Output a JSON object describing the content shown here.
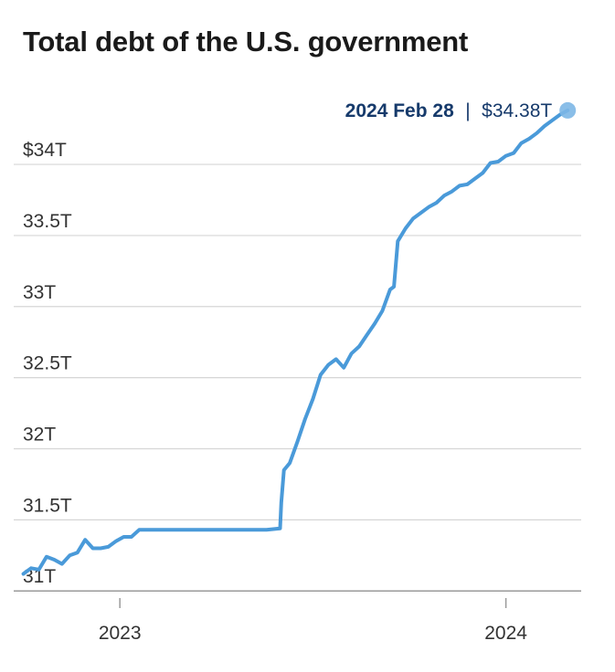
{
  "title": "Total debt of the U.S. government",
  "callout": {
    "date": "2024 Feb 28",
    "separator": "|",
    "value": "$34.38T"
  },
  "colors": {
    "line": "#4a9ad9",
    "grid": "#d6d6d6",
    "axis": "#9a9a9a",
    "callout": "#163a6b",
    "marker": "#7db7e6"
  },
  "chart_data": {
    "type": "line",
    "title": "Total debt of the U.S. government",
    "xlabel": "",
    "ylabel": "",
    "ylim": [
      30.95,
      34.45
    ],
    "y_ticks": [
      {
        "value": 31,
        "label": "31T"
      },
      {
        "value": 31.5,
        "label": "31.5T"
      },
      {
        "value": 32,
        "label": "32T"
      },
      {
        "value": 32.5,
        "label": "32.5T"
      },
      {
        "value": 33,
        "label": "33T"
      },
      {
        "value": 33.5,
        "label": "33.5T"
      },
      {
        "value": 34,
        "label": "$34T"
      }
    ],
    "x_ticks": [
      {
        "value": 2023.0,
        "label": "2023"
      },
      {
        "value": 2024.0,
        "label": "2024"
      }
    ],
    "grid": true,
    "series": [
      {
        "x": [
          2022.75,
          2022.77,
          2022.79,
          2022.81,
          2022.83,
          2022.85,
          2022.87,
          2022.89,
          2022.91,
          2022.93,
          2022.95,
          2022.97,
          2022.99,
          2023.01,
          2023.03,
          2023.05,
          2023.1,
          2023.2,
          2023.3,
          2023.38,
          2023.415,
          2023.418,
          2023.425,
          2023.44,
          2023.46,
          2023.48,
          2023.5,
          2023.52,
          2023.54,
          2023.56,
          2023.58,
          2023.6,
          2023.62,
          2023.64,
          2023.66,
          2023.68,
          2023.7,
          2023.71,
          2023.72,
          2023.74,
          2023.76,
          2023.78,
          2023.8,
          2023.82,
          2023.84,
          2023.86,
          2023.88,
          2023.9,
          2023.92,
          2023.94,
          2023.96,
          2023.98,
          2024.0,
          2024.02,
          2024.04,
          2024.06,
          2024.08,
          2024.1,
          2024.12,
          2024.14,
          2024.16
        ],
        "y": [
          31.12,
          31.16,
          31.15,
          31.24,
          31.22,
          31.19,
          31.25,
          31.27,
          31.36,
          31.3,
          31.3,
          31.31,
          31.35,
          31.38,
          31.38,
          31.43,
          31.43,
          31.43,
          31.43,
          31.43,
          31.44,
          31.62,
          31.85,
          31.9,
          32.05,
          32.21,
          32.35,
          32.52,
          32.59,
          32.63,
          32.57,
          32.67,
          32.72,
          32.8,
          32.88,
          32.97,
          33.12,
          33.14,
          33.46,
          33.55,
          33.62,
          33.66,
          33.7,
          33.73,
          33.78,
          33.81,
          33.85,
          33.86,
          33.9,
          33.94,
          34.01,
          34.02,
          34.06,
          34.08,
          34.15,
          34.18,
          34.22,
          34.27,
          34.31,
          34.35,
          34.38
        ]
      }
    ]
  }
}
